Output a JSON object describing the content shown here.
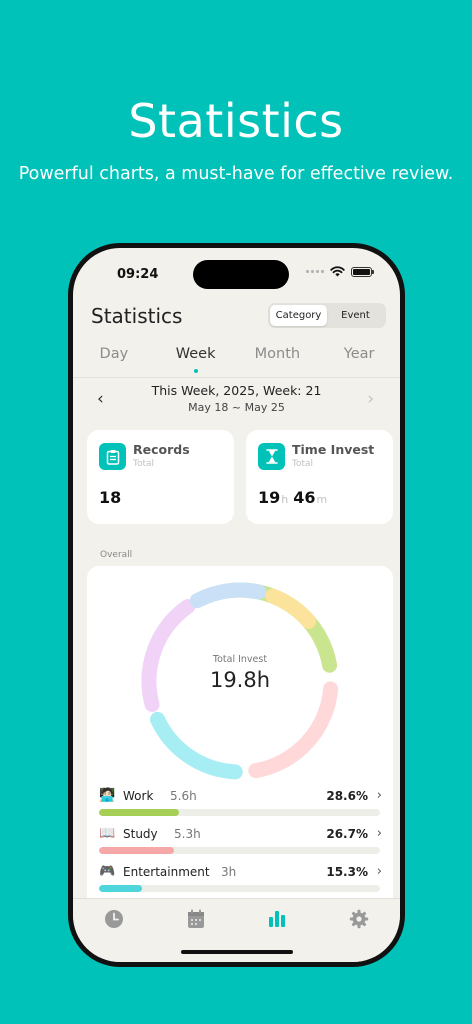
{
  "promo": {
    "title": "Statistics",
    "subtitle": "Powerful charts, a must-have for effective review."
  },
  "status_bar": {
    "time": "09:24"
  },
  "header": {
    "title": "Statistics",
    "segments": [
      "Category",
      "Event"
    ],
    "selected_segment": "Category"
  },
  "period_tabs": [
    {
      "label": "Day",
      "active": false
    },
    {
      "label": "Week",
      "active": true
    },
    {
      "label": "Month",
      "active": false
    },
    {
      "label": "Year",
      "active": false
    }
  ],
  "week_nav": {
    "title": "This Week, 2025, Week: 21",
    "range": "May 18 ~ May 25",
    "prev_icon": "chevron-left-icon",
    "next_icon": "chevron-right-icon"
  },
  "summary": {
    "records": {
      "label": "Records",
      "sub": "Total",
      "value": "18",
      "icon": "clipboard-icon"
    },
    "time_invest": {
      "label": "Time Invest",
      "sub": "Total",
      "hours": "19",
      "hours_unit": "h",
      "minutes": "46",
      "minutes_unit": "m",
      "icon": "hourglass-icon"
    }
  },
  "overall": {
    "label": "Overall",
    "donut_caption": "Total Invest",
    "donut_total": "19.8h"
  },
  "categories": [
    {
      "emoji": "🧑🏻‍💻",
      "name": "Work",
      "hours": "5.6h",
      "percent": "28.6%",
      "fraction": 0.286,
      "color": "#a5cf55"
    },
    {
      "emoji": "📖",
      "name": "Study",
      "hours": "5.3h",
      "percent": "26.7%",
      "fraction": 0.267,
      "color": "#f6a8a8"
    },
    {
      "emoji": "🎮",
      "name": "Entertainment",
      "hours": "3h",
      "percent": "15.3%",
      "fraction": 0.153,
      "color": "#4fd5dc"
    }
  ],
  "colors": {
    "brand": "#00c2b8",
    "donut_segments": [
      "#c9e58f",
      "#ffd9d9",
      "#a6eef4",
      "#f1d3f7",
      "#c9e0f7",
      "#fbe39b"
    ]
  },
  "tabbar": [
    {
      "icon": "clock-icon",
      "active": false
    },
    {
      "icon": "calendar-icon",
      "active": false
    },
    {
      "icon": "bar-chart-icon",
      "active": true
    },
    {
      "icon": "gear-icon",
      "active": false
    }
  ]
}
